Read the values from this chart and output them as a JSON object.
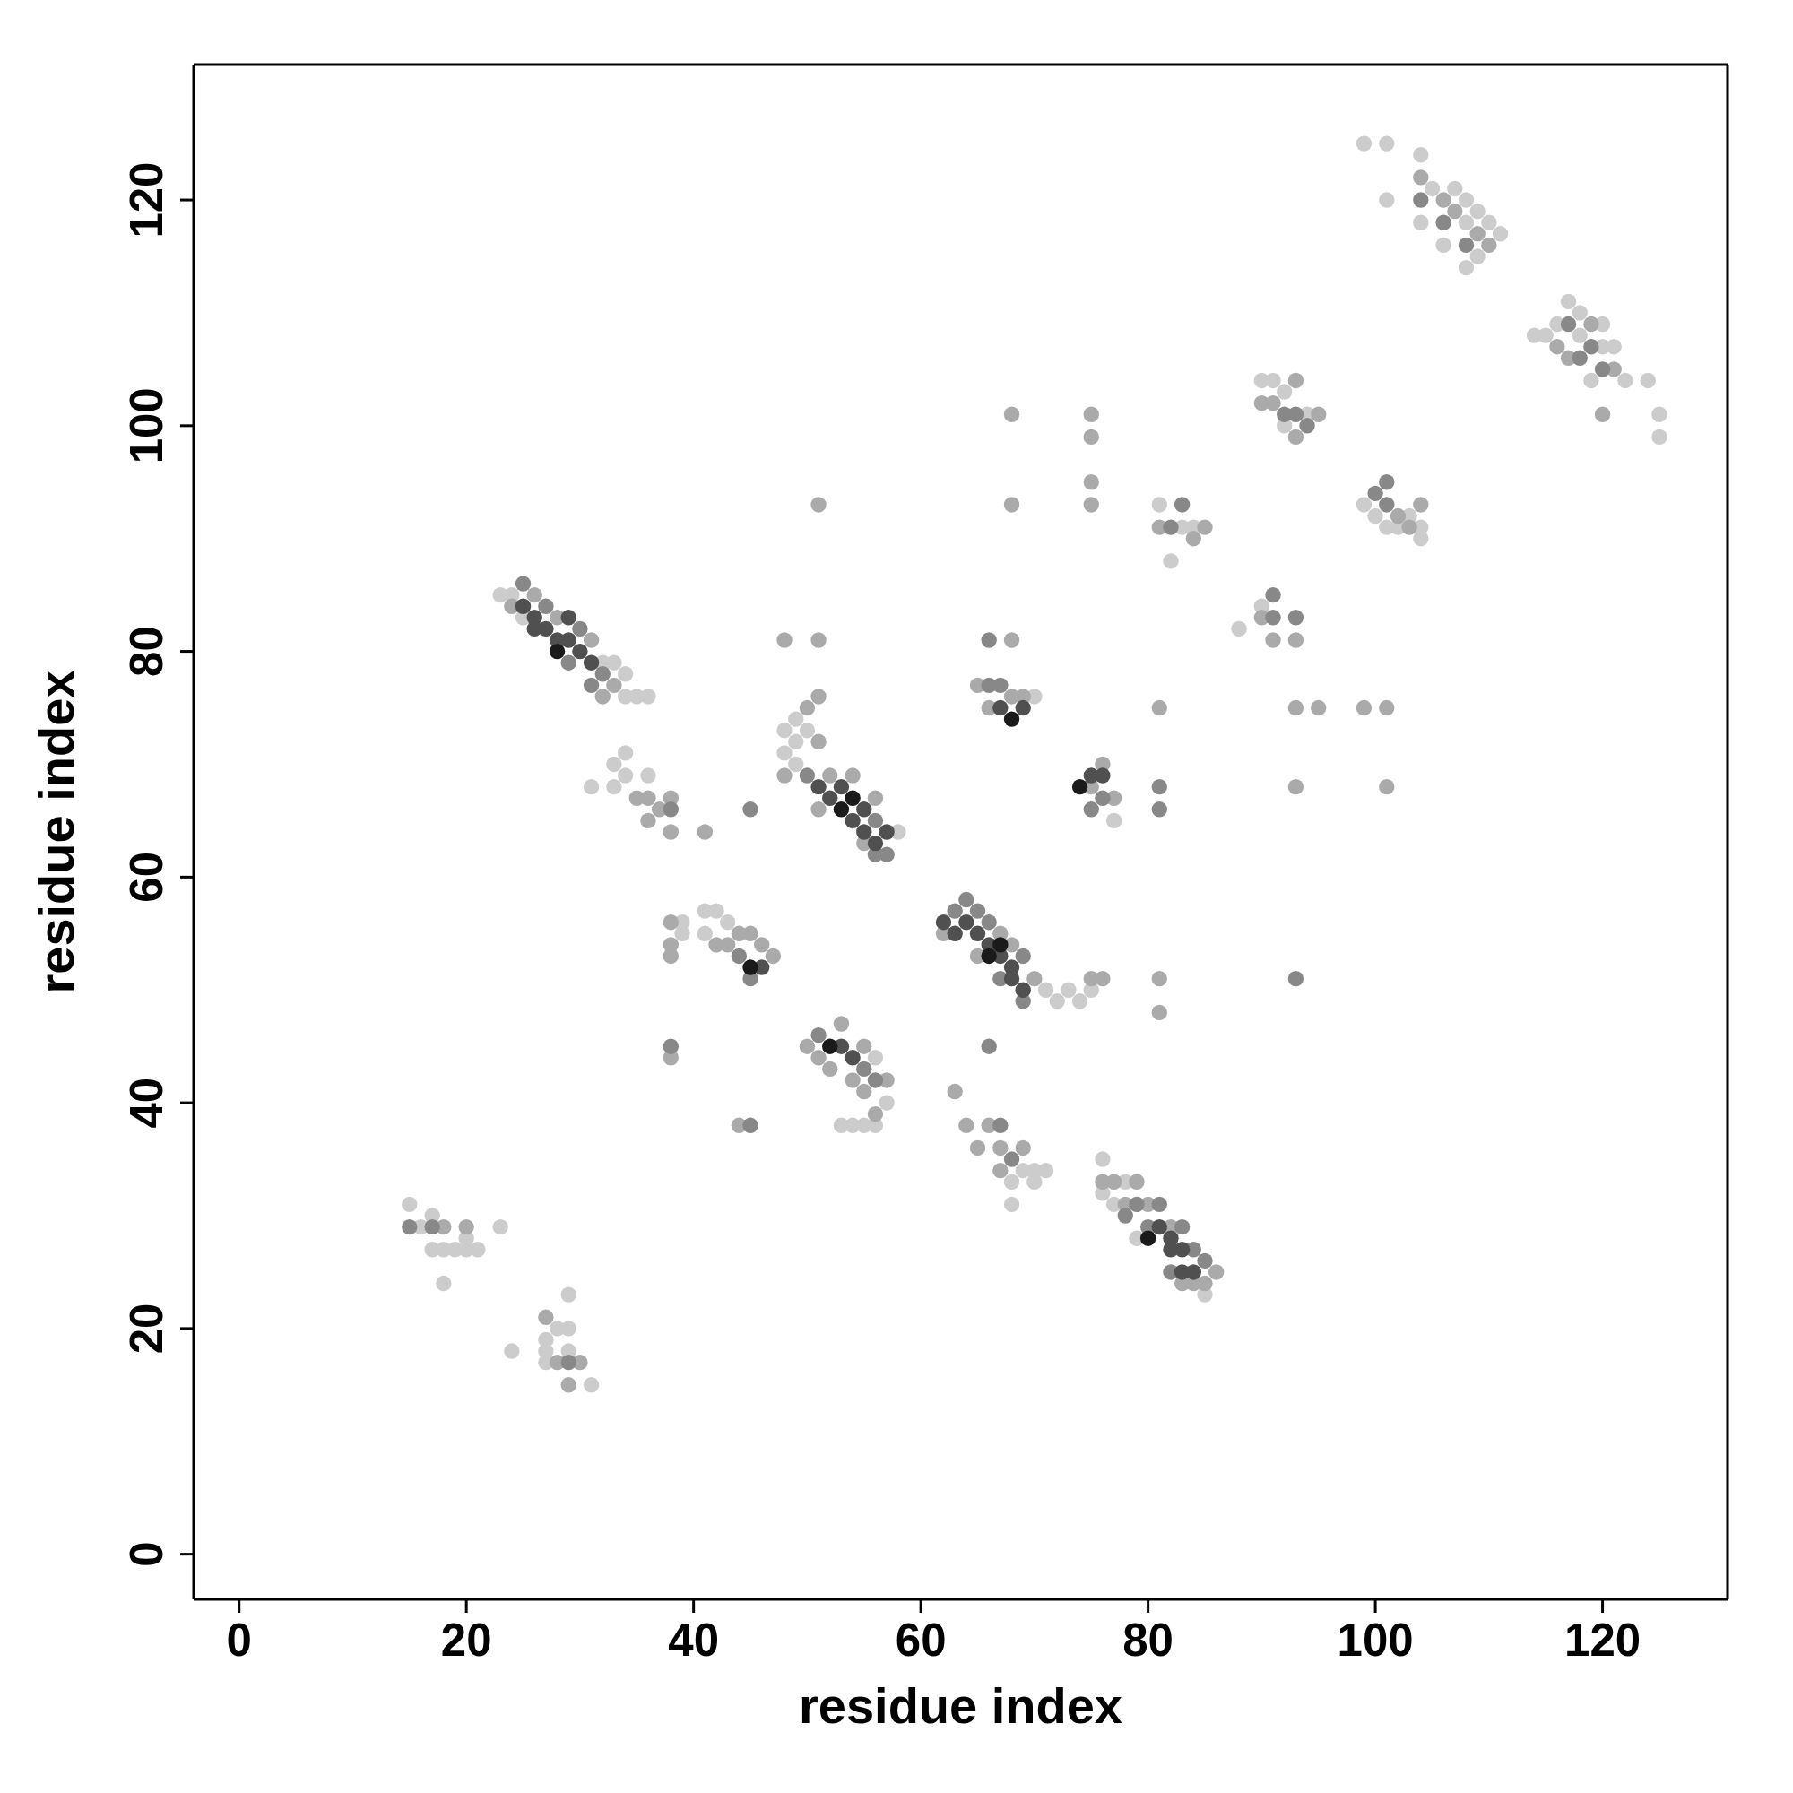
{
  "chart_data": {
    "type": "scatter",
    "xlabel": "residue index",
    "ylabel": "residue index",
    "xlim": [
      -4,
      131
    ],
    "ylim": [
      -4,
      132
    ],
    "xticks": [
      0,
      20,
      40,
      60,
      80,
      100,
      120
    ],
    "yticks": [
      0,
      20,
      40,
      60,
      80,
      100,
      120
    ],
    "marker": "circle",
    "series": [
      {
        "color": "#1a1a1a",
        "x": [
          53,
          54,
          45,
          68,
          74,
          66,
          67,
          80,
          28,
          52
        ],
        "values": [
          66,
          67,
          52,
          74,
          68,
          53,
          54,
          28,
          80,
          45
        ]
      },
      {
        "color": "#505050",
        "x": [
          25,
          26,
          26,
          27,
          28,
          29,
          30,
          31,
          51,
          52,
          53,
          54,
          55,
          55,
          56,
          57,
          62,
          63,
          64,
          65,
          66,
          67,
          68,
          68,
          69,
          81,
          82,
          82,
          83,
          84,
          83,
          53,
          54,
          67,
          69,
          75,
          76,
          46,
          29
        ],
        "values": [
          84,
          83,
          82,
          82,
          81,
          81,
          80,
          79,
          68,
          67,
          68,
          65,
          66,
          64,
          63,
          64,
          56,
          55,
          56,
          55,
          54,
          53,
          52,
          51,
          50,
          29,
          28,
          27,
          27,
          25,
          25,
          45,
          44,
          75,
          75,
          69,
          69,
          52,
          83
        ]
      },
      {
        "color": "#888888",
        "x": [
          104,
          106,
          108,
          117,
          118,
          119,
          120,
          92,
          93,
          94,
          100,
          101,
          101,
          83,
          82,
          91,
          91,
          93,
          66,
          81,
          38,
          66,
          45,
          38,
          45,
          44,
          45,
          66,
          67,
          75,
          76,
          79,
          80,
          81,
          83,
          84,
          85,
          82,
          78,
          25,
          27,
          29,
          30,
          31,
          32,
          56,
          57,
          56,
          50,
          64,
          65,
          63,
          66,
          69,
          69,
          67,
          17,
          15,
          29,
          55,
          56,
          67,
          68,
          81,
          93,
          51
        ],
        "values": [
          120,
          118,
          116,
          109,
          106,
          107,
          105,
          101,
          101,
          100,
          94,
          93,
          95,
          93,
          91,
          85,
          83,
          83,
          81,
          66,
          45,
          45,
          38,
          66,
          66,
          53,
          51,
          77,
          77,
          66,
          67,
          31,
          29,
          31,
          29,
          27,
          26,
          25,
          30,
          86,
          84,
          79,
          82,
          77,
          78,
          65,
          62,
          62,
          69,
          58,
          57,
          57,
          56,
          53,
          49,
          51,
          29,
          29,
          17,
          43,
          42,
          38,
          35,
          68,
          51,
          46
        ]
      },
      {
        "color": "#aaaaaa",
        "x": [
          104,
          106,
          107,
          109,
          110,
          116,
          117,
          119,
          121,
          120,
          90,
          91,
          93,
          93,
          95,
          102,
          103,
          104,
          84,
          85,
          81,
          90,
          91,
          93,
          93,
          95,
          99,
          101,
          93,
          101,
          81,
          81,
          81,
          75,
          75,
          75,
          68,
          68,
          75,
          48,
          51,
          68,
          51,
          50,
          51,
          51,
          51,
          48,
          52,
          54,
          55,
          56,
          56,
          57,
          53,
          54,
          55,
          55,
          50,
          51,
          52,
          42,
          43,
          44,
          45,
          46,
          47,
          38,
          38,
          38,
          38,
          44,
          38,
          38,
          37,
          36,
          36,
          35,
          41,
          32,
          33,
          31,
          28,
          24,
          26,
          27,
          28,
          29,
          30,
          20,
          18,
          63,
          64,
          66,
          65,
          67,
          67,
          69,
          65,
          67,
          68,
          70,
          62,
          76,
          75,
          77,
          78,
          84,
          83,
          85,
          86,
          82,
          76,
          79,
          80,
          66,
          68,
          69,
          77,
          75,
          65,
          76
        ],
        "values": [
          122,
          120,
          119,
          117,
          116,
          107,
          106,
          109,
          105,
          101,
          102,
          102,
          104,
          99,
          101,
          92,
          91,
          93,
          90,
          91,
          91,
          83,
          81,
          81,
          75,
          75,
          75,
          75,
          68,
          68,
          75,
          51,
          48,
          99,
          95,
          93,
          93,
          101,
          101,
          81,
          81,
          81,
          93,
          75,
          76,
          72,
          66,
          69,
          69,
          69,
          63,
          67,
          39,
          42,
          47,
          42,
          45,
          41,
          45,
          44,
          43,
          54,
          54,
          55,
          55,
          54,
          53,
          56,
          54,
          53,
          44,
          38,
          67,
          64,
          66,
          65,
          67,
          67,
          64,
          76,
          77,
          81,
          83,
          84,
          85,
          21,
          17,
          15,
          17,
          29,
          29,
          41,
          38,
          38,
          36,
          36,
          34,
          36,
          53,
          55,
          54,
          51,
          55,
          51,
          51,
          33,
          31,
          24,
          24,
          24,
          25,
          29,
          33,
          33,
          31,
          75,
          76,
          76,
          67,
          68,
          77,
          70
        ]
      },
      {
        "color": "#cccccc",
        "x": [
          99,
          101,
          101,
          104,
          104,
          105,
          106,
          107,
          108,
          108,
          108,
          109,
          109,
          110,
          111,
          114,
          115,
          116,
          117,
          118,
          118,
          119,
          120,
          120,
          121,
          122,
          124,
          125,
          125,
          90,
          91,
          92,
          92,
          94,
          99,
          100,
          101,
          102,
          103,
          104,
          104,
          81,
          82,
          83,
          84,
          88,
          90,
          70,
          77,
          23,
          24,
          25,
          32,
          33,
          34,
          34,
          35,
          36,
          31,
          33,
          33,
          34,
          34,
          36,
          48,
          48,
          49,
          49,
          49,
          50,
          39,
          39,
          41,
          41,
          42,
          43,
          57,
          53,
          54,
          55,
          56,
          56,
          68,
          68,
          69,
          70,
          70,
          71,
          71,
          72,
          73,
          74,
          75,
          76,
          76,
          77,
          78,
          79,
          85,
          15,
          16,
          17,
          17,
          18,
          18,
          19,
          20,
          20,
          21,
          23,
          24,
          27,
          27,
          27,
          28,
          29,
          29,
          29,
          31,
          58
        ],
        "values": [
          125,
          125,
          120,
          124,
          118,
          121,
          116,
          121,
          120,
          118,
          114,
          119,
          115,
          118,
          117,
          108,
          108,
          109,
          111,
          110,
          108,
          104,
          109,
          107,
          107,
          104,
          104,
          101,
          99,
          104,
          104,
          103,
          100,
          101,
          93,
          92,
          91,
          91,
          92,
          91,
          90,
          93,
          88,
          91,
          91,
          82,
          84,
          76,
          65,
          85,
          85,
          83,
          79,
          79,
          78,
          76,
          76,
          76,
          68,
          70,
          68,
          71,
          69,
          69,
          73,
          71,
          74,
          72,
          70,
          73,
          56,
          55,
          57,
          55,
          57,
          56,
          40,
          38,
          38,
          38,
          38,
          44,
          33,
          31,
          34,
          33,
          34,
          34,
          50,
          49,
          50,
          49,
          50,
          35,
          32,
          31,
          33,
          28,
          23,
          31,
          29,
          30,
          27,
          27,
          24,
          27,
          28,
          27,
          27,
          29,
          18,
          19,
          18,
          17,
          20,
          23,
          20,
          18,
          15,
          64
        ]
      }
    ]
  }
}
